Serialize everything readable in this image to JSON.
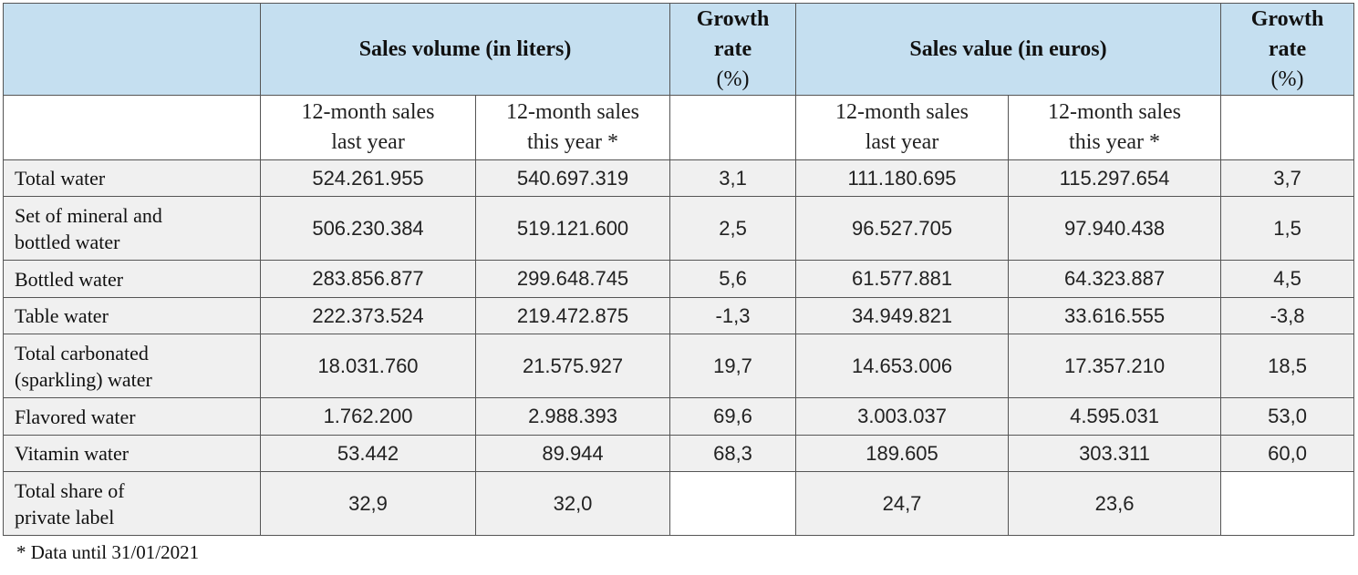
{
  "header": {
    "volume_group": "Sales volume (in liters)",
    "growth_rate_1": [
      "Growth",
      "rate",
      "(%)"
    ],
    "value_group": "Sales value (in euros)",
    "growth_rate_2": [
      "Growth",
      "rate",
      "(%)"
    ]
  },
  "subheader": {
    "vol_last": [
      "12-month sales",
      "last year"
    ],
    "vol_this": [
      "12-month sales",
      "this year *"
    ],
    "val_last": [
      "12-month sales",
      "last year"
    ],
    "val_this": [
      "12-month sales",
      "this year *"
    ]
  },
  "rows": [
    {
      "label": [
        "Total water"
      ],
      "vol_last": "524.261.955",
      "vol_this": "540.697.319",
      "vol_growth": "3,1",
      "val_last": "111.180.695",
      "val_this": "115.297.654",
      "val_growth": "3,7"
    },
    {
      "label": [
        "Set of mineral and",
        "bottled water"
      ],
      "vol_last": "506.230.384",
      "vol_this": "519.121.600",
      "vol_growth": "2,5",
      "val_last": "96.527.705",
      "val_this": "97.940.438",
      "val_growth": "1,5"
    },
    {
      "label": [
        "Bottled water"
      ],
      "vol_last": "283.856.877",
      "vol_this": "299.648.745",
      "vol_growth": "5,6",
      "val_last": "61.577.881",
      "val_this": "64.323.887",
      "val_growth": "4,5"
    },
    {
      "label": [
        "Table water"
      ],
      "vol_last": "222.373.524",
      "vol_this": "219.472.875",
      "vol_growth": "-1,3",
      "val_last": "34.949.821",
      "val_this": "33.616.555",
      "val_growth": "-3,8"
    },
    {
      "label": [
        "Total carbonated",
        "(sparkling) water"
      ],
      "vol_last": "18.031.760",
      "vol_this": "21.575.927",
      "vol_growth": "19,7",
      "val_last": "14.653.006",
      "val_this": "17.357.210",
      "val_growth": "18,5"
    },
    {
      "label": [
        "Flavored water"
      ],
      "vol_last": "1.762.200",
      "vol_this": "2.988.393",
      "vol_growth": "69,6",
      "val_last": "3.003.037",
      "val_this": "4.595.031",
      "val_growth": "53,0"
    },
    {
      "label": [
        "Vitamin water"
      ],
      "vol_last": "53.442",
      "vol_this": "89.944",
      "vol_growth": "68,3",
      "val_last": "189.605",
      "val_this": "303.311",
      "val_growth": "60,0"
    },
    {
      "label": [
        "Total share of",
        "private label"
      ],
      "vol_last": "32,9",
      "vol_this": "32,0",
      "vol_growth": "",
      "val_last": "24,7",
      "val_this": "23,6",
      "val_growth": ""
    }
  ],
  "footnote": "* Data until 31/01/2021"
}
